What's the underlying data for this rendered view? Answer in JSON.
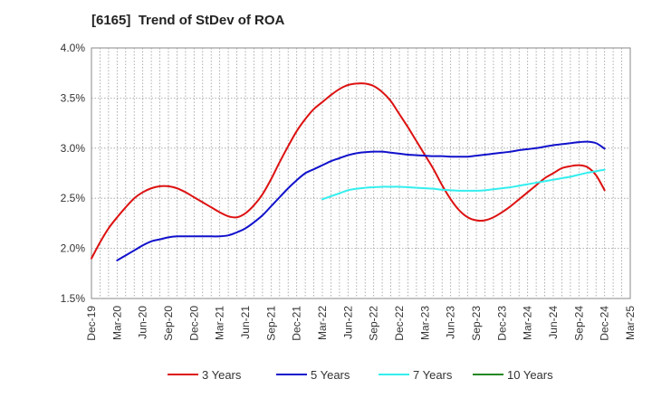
{
  "chart_data": {
    "type": "line",
    "title": "[6165]  Trend of StDev of ROA",
    "xlabel": "",
    "ylabel": "",
    "ylim": [
      1.5,
      4.0
    ],
    "y_ticks": [
      1.5,
      2.0,
      2.5,
      3.0,
      3.5,
      4.0
    ],
    "y_tick_labels": [
      "1.5%",
      "2.0%",
      "2.5%",
      "3.0%",
      "3.5%",
      "4.0%"
    ],
    "x_tick_labels": [
      "Dec-19",
      "Mar-20",
      "Jun-20",
      "Sep-20",
      "Dec-20",
      "Mar-21",
      "Jun-21",
      "Sep-21",
      "Dec-21",
      "Mar-22",
      "Jun-22",
      "Sep-22",
      "Dec-22",
      "Mar-23",
      "Jun-23",
      "Sep-23",
      "Dec-23",
      "Mar-24",
      "Jun-24",
      "Sep-24",
      "Dec-24",
      "Mar-25"
    ],
    "grid": true,
    "legend_position": "bottom",
    "series": [
      {
        "name": "3 Years",
        "color": "#dd1111",
        "x": [
          "Dec-19",
          "Jan-20",
          "Feb-20",
          "Mar-20",
          "Apr-20",
          "May-20",
          "Jun-20",
          "Jul-20",
          "Aug-20",
          "Sep-20",
          "Oct-20",
          "Nov-20",
          "Dec-20",
          "Jan-21",
          "Feb-21",
          "Mar-21",
          "Apr-21",
          "May-21",
          "Jun-21",
          "Jul-21",
          "Aug-21",
          "Sep-21",
          "Oct-21",
          "Nov-21",
          "Dec-21",
          "Jan-22",
          "Feb-22",
          "Mar-22",
          "Apr-22",
          "May-22",
          "Jun-22",
          "Jul-22",
          "Aug-22",
          "Sep-22",
          "Oct-22",
          "Nov-22",
          "Dec-22",
          "Jan-23",
          "Feb-23",
          "Mar-23",
          "Apr-23",
          "May-23",
          "Jun-23",
          "Jul-23",
          "Aug-23",
          "Sep-23",
          "Oct-23",
          "Nov-23",
          "Dec-23",
          "Jan-24",
          "Feb-24",
          "Mar-24",
          "Apr-24",
          "May-24",
          "Jun-24",
          "Jul-24",
          "Aug-24",
          "Sep-24",
          "Oct-24",
          "Nov-24",
          "Dec-24"
        ],
        "values": [
          1.9,
          2.06,
          2.2,
          2.31,
          2.41,
          2.5,
          2.56,
          2.6,
          2.62,
          2.62,
          2.6,
          2.56,
          2.51,
          2.46,
          2.41,
          2.36,
          2.32,
          2.31,
          2.35,
          2.43,
          2.54,
          2.69,
          2.86,
          3.02,
          3.17,
          3.29,
          3.39,
          3.46,
          3.53,
          3.59,
          3.63,
          3.645,
          3.645,
          3.62,
          3.56,
          3.47,
          3.34,
          3.21,
          3.07,
          2.93,
          2.79,
          2.63,
          2.49,
          2.38,
          2.31,
          2.28,
          2.28,
          2.31,
          2.36,
          2.42,
          2.49,
          2.56,
          2.63,
          2.7,
          2.75,
          2.8,
          2.82,
          2.83,
          2.81,
          2.73,
          2.58
        ]
      },
      {
        "name": "5 Years",
        "color": "#1111cc",
        "x": [
          "Mar-20",
          "Apr-20",
          "May-20",
          "Jun-20",
          "Jul-20",
          "Aug-20",
          "Sep-20",
          "Oct-20",
          "Nov-20",
          "Dec-20",
          "Jan-21",
          "Feb-21",
          "Mar-21",
          "Apr-21",
          "May-21",
          "Jun-21",
          "Jul-21",
          "Aug-21",
          "Sep-21",
          "Oct-21",
          "Nov-21",
          "Dec-21",
          "Jan-22",
          "Feb-22",
          "Mar-22",
          "Apr-22",
          "May-22",
          "Jun-22",
          "Jul-22",
          "Aug-22",
          "Sep-22",
          "Oct-22",
          "Nov-22",
          "Dec-22",
          "Jan-23",
          "Feb-23",
          "Mar-23",
          "Apr-23",
          "May-23",
          "Jun-23",
          "Jul-23",
          "Aug-23",
          "Sep-23",
          "Oct-23",
          "Nov-23",
          "Dec-23",
          "Jan-24",
          "Feb-24",
          "Mar-24",
          "Apr-24",
          "May-24",
          "Jun-24",
          "Jul-24",
          "Aug-24",
          "Sep-24",
          "Oct-24",
          "Nov-24",
          "Dec-24"
        ],
        "values": [
          1.88,
          1.93,
          1.98,
          2.03,
          2.07,
          2.09,
          2.11,
          2.12,
          2.12,
          2.12,
          2.12,
          2.12,
          2.12,
          2.13,
          2.16,
          2.2,
          2.26,
          2.33,
          2.42,
          2.51,
          2.6,
          2.68,
          2.75,
          2.79,
          2.83,
          2.87,
          2.9,
          2.93,
          2.95,
          2.96,
          2.965,
          2.965,
          2.955,
          2.945,
          2.935,
          2.93,
          2.925,
          2.92,
          2.92,
          2.915,
          2.915,
          2.915,
          2.925,
          2.935,
          2.945,
          2.955,
          2.965,
          2.98,
          2.99,
          3.0,
          3.015,
          3.03,
          3.04,
          3.05,
          3.06,
          3.065,
          3.05,
          2.995
        ]
      },
      {
        "name": "7 Years",
        "color": "#33eeee",
        "x": [
          "Mar-22",
          "Apr-22",
          "May-22",
          "Jun-22",
          "Jul-22",
          "Aug-22",
          "Sep-22",
          "Oct-22",
          "Nov-22",
          "Dec-22",
          "Jan-23",
          "Feb-23",
          "Mar-23",
          "Apr-23",
          "May-23",
          "Jun-23",
          "Jul-23",
          "Aug-23",
          "Sep-23",
          "Oct-23",
          "Nov-23",
          "Dec-23",
          "Jan-24",
          "Feb-24",
          "Mar-24",
          "Apr-24",
          "May-24",
          "Jun-24",
          "Jul-24",
          "Aug-24",
          "Sep-24",
          "Oct-24",
          "Nov-24",
          "Dec-24"
        ],
        "values": [
          2.49,
          2.52,
          2.55,
          2.58,
          2.595,
          2.605,
          2.61,
          2.615,
          2.615,
          2.615,
          2.61,
          2.605,
          2.6,
          2.595,
          2.585,
          2.58,
          2.575,
          2.575,
          2.575,
          2.58,
          2.59,
          2.6,
          2.61,
          2.625,
          2.64,
          2.655,
          2.67,
          2.685,
          2.7,
          2.715,
          2.735,
          2.755,
          2.77,
          2.785
        ]
      },
      {
        "name": "10 Years",
        "color": "#228822",
        "x": [],
        "values": []
      }
    ]
  }
}
